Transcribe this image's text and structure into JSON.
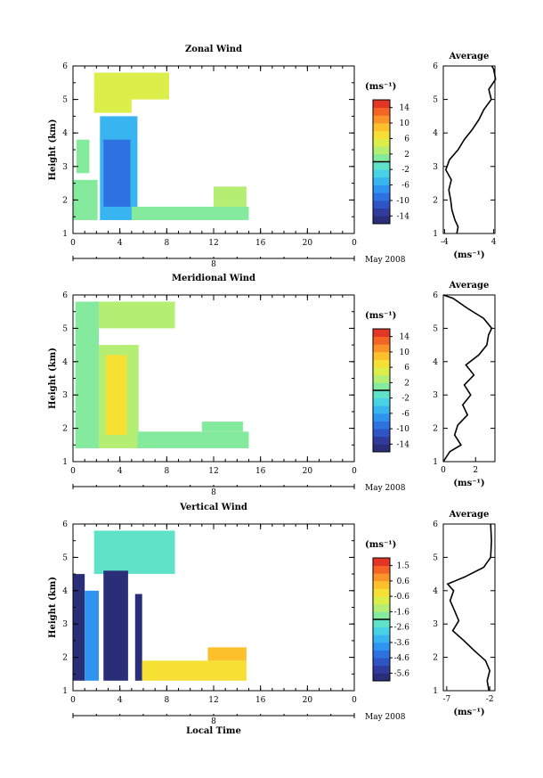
{
  "figure": {
    "x_axis_label": "Local Time",
    "date_label": "May 2008",
    "cb_unit": "(ms⁻¹)",
    "avg_unit": "(ms⁻¹)"
  },
  "chart_data": [
    {
      "type": "heatmap",
      "title": "Zonal Wind",
      "ylabel": "Height (km)",
      "xlabel": "",
      "x_ticks": [
        "0",
        "4",
        "8",
        "12",
        "16",
        "20",
        "0"
      ],
      "xlim": [
        0,
        24
      ],
      "ylim": [
        1,
        6
      ],
      "y_ticks": [
        "1",
        "2",
        "3",
        "4",
        "5",
        "6"
      ],
      "date_marker": "8",
      "colorbar": {
        "ticks": [
          "14",
          "10",
          "6",
          "2",
          "-2",
          "-6",
          "-10",
          "-14"
        ],
        "range": [
          -16,
          16
        ]
      },
      "patches": [
        {
          "x": [
            1.8,
            8.2
          ],
          "y": [
            5.0,
            5.8
          ],
          "v": 4
        },
        {
          "x": [
            1.8,
            5.0
          ],
          "y": [
            4.6,
            5.2
          ],
          "v": 5
        },
        {
          "x": [
            2.3,
            5.5
          ],
          "y": [
            1.4,
            4.5
          ],
          "v": -6
        },
        {
          "x": [
            2.6,
            4.9
          ],
          "y": [
            1.8,
            3.8
          ],
          "v": -10
        },
        {
          "x": [
            0.0,
            2.1
          ],
          "y": [
            1.4,
            2.6
          ],
          "v": 0
        },
        {
          "x": [
            0.3,
            1.4
          ],
          "y": [
            2.8,
            3.8
          ],
          "v": 0
        },
        {
          "x": [
            5.0,
            15.0
          ],
          "y": [
            1.4,
            1.8
          ],
          "v": 1
        },
        {
          "x": [
            12.0,
            14.8
          ],
          "y": [
            1.8,
            2.4
          ],
          "v": 2
        }
      ]
    },
    {
      "type": "heatmap",
      "title": "Meridional Wind",
      "ylabel": "Height (km)",
      "xlabel": "",
      "x_ticks": [
        "0",
        "4",
        "8",
        "12",
        "16",
        "20",
        "0"
      ],
      "xlim": [
        0,
        24
      ],
      "ylim": [
        1,
        6
      ],
      "y_ticks": [
        "1",
        "2",
        "3",
        "4",
        "5",
        "6"
      ],
      "date_marker": "8",
      "colorbar": {
        "ticks": [
          "14",
          "10",
          "6",
          "2",
          "-2",
          "-6",
          "-10",
          "-14"
        ],
        "range": [
          -16,
          16
        ]
      },
      "patches": [
        {
          "x": [
            1.8,
            8.7
          ],
          "y": [
            5.0,
            5.8
          ],
          "v": 2
        },
        {
          "x": [
            0.2,
            2.2
          ],
          "y": [
            1.4,
            5.8
          ],
          "v": 1
        },
        {
          "x": [
            2.2,
            5.6
          ],
          "y": [
            1.4,
            4.5
          ],
          "v": 3
        },
        {
          "x": [
            2.8,
            4.6
          ],
          "y": [
            1.8,
            4.2
          ],
          "v": 6
        },
        {
          "x": [
            5.5,
            15.0
          ],
          "y": [
            1.4,
            1.9
          ],
          "v": 1
        },
        {
          "x": [
            11.0,
            14.5
          ],
          "y": [
            1.9,
            2.2
          ],
          "v": 0
        }
      ]
    },
    {
      "type": "heatmap",
      "title": "Vertical Wind",
      "ylabel": "Height (km)",
      "xlabel": "Local Time",
      "x_ticks": [
        "0",
        "4",
        "8",
        "12",
        "16",
        "20",
        "0"
      ],
      "xlim": [
        0,
        24
      ],
      "ylim": [
        1,
        6
      ],
      "y_ticks": [
        "1",
        "2",
        "3",
        "4",
        "5",
        "6"
      ],
      "date_marker": "8",
      "colorbar": {
        "ticks": [
          "1.5",
          "0.6",
          "-0.6",
          "-1.6",
          "-2.6",
          "-3.6",
          "-4.6",
          "-5.6"
        ],
        "range": [
          -6.5,
          2.3
        ]
      },
      "patches": [
        {
          "x": [
            1.8,
            8.7
          ],
          "y": [
            4.5,
            5.8
          ],
          "v": -2.4
        },
        {
          "x": [
            0.0,
            1.0
          ],
          "y": [
            1.3,
            4.5
          ],
          "v": -6.3
        },
        {
          "x": [
            1.0,
            2.2
          ],
          "y": [
            1.3,
            4.0
          ],
          "v": -4.2
        },
        {
          "x": [
            2.6,
            4.7
          ],
          "y": [
            1.3,
            4.6
          ],
          "v": -6.3
        },
        {
          "x": [
            5.3,
            5.9
          ],
          "y": [
            1.3,
            3.9
          ],
          "v": -6.3
        },
        {
          "x": [
            5.9,
            14.8
          ],
          "y": [
            1.3,
            1.9
          ],
          "v": 0.1
        },
        {
          "x": [
            11.5,
            14.8
          ],
          "y": [
            1.9,
            2.3
          ],
          "v": 0.6
        }
      ]
    }
  ],
  "averages": [
    {
      "title": "Average",
      "x_ticks": [
        "-4",
        "4"
      ],
      "xlim": [
        -4.2,
        4.2
      ],
      "ylim": [
        1,
        6
      ],
      "y_ticks": [
        "1",
        "2",
        "3",
        "4",
        "5",
        "6"
      ],
      "profile": [
        [
          -2.0,
          1.0
        ],
        [
          -1.8,
          1.2
        ],
        [
          -2.3,
          1.4
        ],
        [
          -2.8,
          1.7
        ],
        [
          -3.0,
          2.0
        ],
        [
          -3.3,
          2.3
        ],
        [
          -2.9,
          2.6
        ],
        [
          -3.8,
          2.9
        ],
        [
          -3.2,
          3.2
        ],
        [
          -1.8,
          3.5
        ],
        [
          -0.8,
          3.8
        ],
        [
          0.5,
          4.1
        ],
        [
          1.6,
          4.4
        ],
        [
          2.4,
          4.7
        ],
        [
          3.6,
          5.0
        ],
        [
          3.2,
          5.3
        ],
        [
          4.3,
          5.6
        ],
        [
          4.0,
          5.9
        ],
        [
          3.7,
          6.0
        ]
      ]
    },
    {
      "title": "Average",
      "x_ticks": [
        "0",
        "2"
      ],
      "xlim": [
        0,
        3.2
      ],
      "ylim": [
        1,
        6
      ],
      "y_ticks": [
        "1",
        "2",
        "3",
        "4",
        "5",
        "6"
      ],
      "profile": [
        [
          0.0,
          1.0
        ],
        [
          0.4,
          1.3
        ],
        [
          1.1,
          1.5
        ],
        [
          0.7,
          1.8
        ],
        [
          0.9,
          2.1
        ],
        [
          1.5,
          2.4
        ],
        [
          1.2,
          2.7
        ],
        [
          1.7,
          3.0
        ],
        [
          1.3,
          3.3
        ],
        [
          1.9,
          3.6
        ],
        [
          1.4,
          3.9
        ],
        [
          2.2,
          4.2
        ],
        [
          2.7,
          4.5
        ],
        [
          2.8,
          4.8
        ],
        [
          3.0,
          5.0
        ],
        [
          2.5,
          5.3
        ],
        [
          1.5,
          5.6
        ],
        [
          0.6,
          5.9
        ],
        [
          0.0,
          6.0
        ]
      ]
    },
    {
      "title": "Average",
      "x_ticks": [
        "-7",
        "-2"
      ],
      "xlim": [
        -7.4,
        -1.4
      ],
      "ylim": [
        1,
        6
      ],
      "y_ticks": [
        "1",
        "2",
        "3",
        "4",
        "5",
        "6"
      ],
      "profile": [
        [
          -2.1,
          1.0
        ],
        [
          -2.3,
          1.3
        ],
        [
          -2.0,
          1.6
        ],
        [
          -2.5,
          1.9
        ],
        [
          -3.8,
          2.2
        ],
        [
          -5.0,
          2.5
        ],
        [
          -6.3,
          2.8
        ],
        [
          -5.6,
          3.1
        ],
        [
          -6.1,
          3.4
        ],
        [
          -6.6,
          3.7
        ],
        [
          -6.2,
          4.0
        ],
        [
          -6.9,
          4.2
        ],
        [
          -5.0,
          4.4
        ],
        [
          -2.7,
          4.7
        ],
        [
          -1.9,
          5.0
        ],
        [
          -1.8,
          5.5
        ],
        [
          -1.9,
          6.0
        ]
      ]
    }
  ]
}
